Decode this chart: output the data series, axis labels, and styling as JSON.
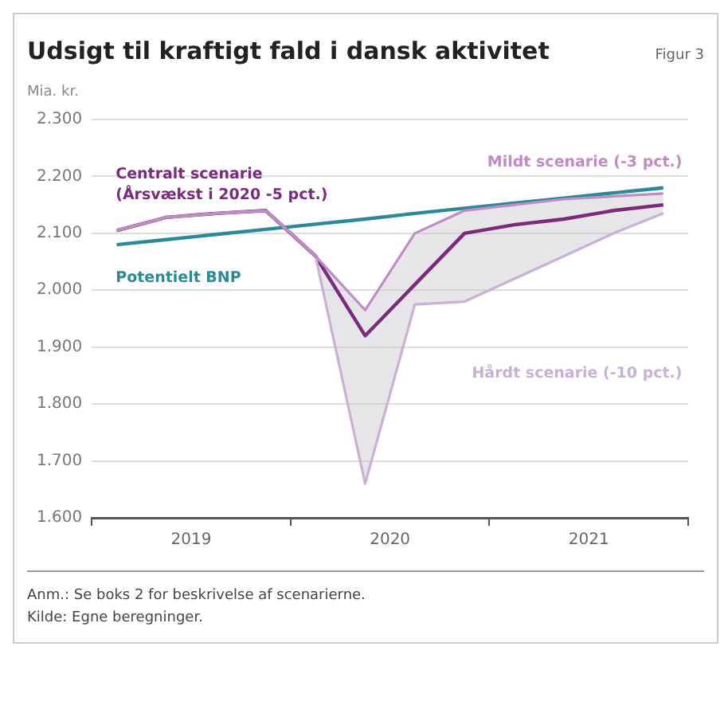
{
  "chart_data": {
    "type": "line",
    "title": "Udsigt til kraftigt fald i dansk aktivitet",
    "subtitle": "Figur 3",
    "ylabel": "Mia. kr.",
    "x": [
      2019.125,
      2019.375,
      2019.625,
      2019.875,
      2020.125,
      2020.375,
      2020.625,
      2020.875,
      2021.125,
      2021.375,
      2021.625,
      2021.875
    ],
    "xlim": [
      2019,
      2022
    ],
    "xticks": [
      {
        "value": 2019,
        "label": null
      },
      {
        "value": 2019.5,
        "label": "2019"
      },
      {
        "value": 2020,
        "label": null
      },
      {
        "value": 2020.5,
        "label": "2020"
      },
      {
        "value": 2021,
        "label": null
      },
      {
        "value": 2021.5,
        "label": "2021"
      },
      {
        "value": 2022,
        "label": null
      }
    ],
    "ylim": [
      1600,
      2300
    ],
    "yticks": [
      {
        "value": 1600,
        "label": "1.600"
      },
      {
        "value": 1700,
        "label": "1.700"
      },
      {
        "value": 1800,
        "label": "1.800"
      },
      {
        "value": 1900,
        "label": "1.900"
      },
      {
        "value": 2000,
        "label": "2.000"
      },
      {
        "value": 2100,
        "label": "2.100"
      },
      {
        "value": 2200,
        "label": "2.200"
      },
      {
        "value": 2300,
        "label": "2.300"
      }
    ],
    "series": [
      {
        "name": "Mildt scenarie (-3 pct.)",
        "color": "#c08cc6",
        "values": [
          2105,
          2128,
          2135,
          2140,
          2060,
          1965,
          2100,
          2140,
          2150,
          2160,
          2165,
          2170
        ]
      },
      {
        "name": "Hårdt scenarie (-10 pct.)",
        "color": "#c9b0d6",
        "values": [
          2105,
          2128,
          2135,
          2140,
          2060,
          1660,
          1975,
          1980,
          2020,
          2060,
          2100,
          2135
        ]
      },
      {
        "name": "Potentielt BNP",
        "color": "#2b8a9a",
        "values": [
          2080,
          2089,
          2098,
          2107,
          2116,
          2125,
          2135,
          2144,
          2153,
          2162,
          2171,
          2180
        ]
      },
      {
        "name": "Centralt scenarie (Årsvækst i 2020 -5 pct.)",
        "color": "#7b2a7e",
        "values": [
          2105,
          2128,
          2135,
          2140,
          2060,
          1920,
          2010,
          2100,
          2115,
          2125,
          2140,
          2150
        ],
        "lower": [
          2105,
          2128,
          2135,
          2140,
          2060,
          1660,
          1975,
          1980,
          2020,
          2060,
          2100,
          2135
        ],
        "upper": [
          2105,
          2128,
          2135,
          2140,
          2060,
          1965,
          2100,
          2140,
          2150,
          2160,
          2165,
          2170
        ]
      }
    ],
    "grid": "y",
    "legend": false,
    "marker": "none",
    "line_style": "solid",
    "annotations": [
      "Anm.: Se boks 2 for beskrivelse af scenarierne.",
      "Kilde: Egne beregninger."
    ]
  }
}
